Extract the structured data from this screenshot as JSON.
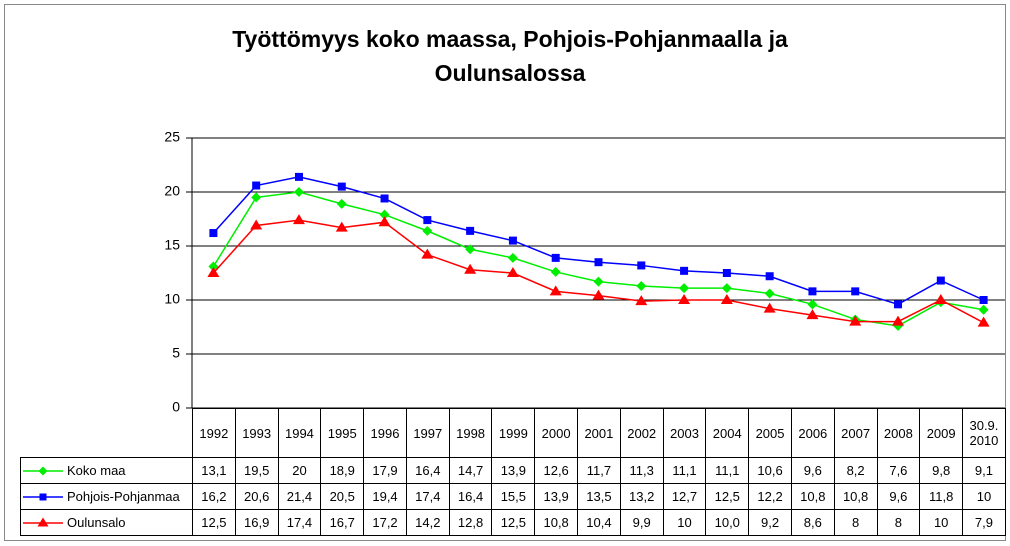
{
  "chart_data": {
    "type": "line",
    "title": "Työttömyys koko maassa, Pohjois-Pohjanmaalla ja Oulunsalossa",
    "categories": [
      "1992",
      "1993",
      "1994",
      "1995",
      "1996",
      "1997",
      "1998",
      "1999",
      "2000",
      "2001",
      "2002",
      "2003",
      "2004",
      "2005",
      "2006",
      "2007",
      "2008",
      "2009",
      "30.9. 2010"
    ],
    "series": [
      {
        "name": "Koko maa",
        "color": "#00ee00",
        "marker": "diamond",
        "values": [
          13.1,
          19.5,
          20,
          18.9,
          17.9,
          16.4,
          14.7,
          13.9,
          12.6,
          11.7,
          11.3,
          11.1,
          11.1,
          10.6,
          9.6,
          8.2,
          7.6,
          9.8,
          9.1
        ],
        "value_labels": [
          "13,1",
          "19,5",
          "20",
          "18,9",
          "17,9",
          "16,4",
          "14,7",
          "13,9",
          "12,6",
          "11,7",
          "11,3",
          "11,1",
          "11,1",
          "10,6",
          "9,6",
          "8,2",
          "7,6",
          "9,8",
          "9,1"
        ]
      },
      {
        "name": "Pohjois-Pohjanmaa",
        "color": "#0000ff",
        "marker": "square",
        "values": [
          16.2,
          20.6,
          21.4,
          20.5,
          19.4,
          17.4,
          16.4,
          15.5,
          13.9,
          13.5,
          13.2,
          12.7,
          12.5,
          12.2,
          10.8,
          10.8,
          9.6,
          11.8,
          10
        ],
        "value_labels": [
          "16,2",
          "20,6",
          "21,4",
          "20,5",
          "19,4",
          "17,4",
          "16,4",
          "15,5",
          "13,9",
          "13,5",
          "13,2",
          "12,7",
          "12,5",
          "12,2",
          "10,8",
          "10,8",
          "9,6",
          "11,8",
          "10"
        ]
      },
      {
        "name": "Oulunsalo",
        "color": "#ff0000",
        "marker": "triangle",
        "values": [
          12.5,
          16.9,
          17.4,
          16.7,
          17.2,
          14.2,
          12.8,
          12.5,
          10.8,
          10.4,
          9.9,
          10,
          10,
          9.2,
          8.6,
          8,
          8,
          10,
          7.9
        ],
        "value_labels": [
          "12,5",
          "16,9",
          "17,4",
          "16,7",
          "17,2",
          "14,2",
          "12,8",
          "12,5",
          "10,8",
          "10,4",
          "9,9",
          "10",
          "10,0",
          "9,2",
          "8,6",
          "8",
          "8",
          "10",
          "7,9"
        ]
      }
    ],
    "ylim": [
      0,
      25
    ],
    "yticks": [
      0,
      5,
      10,
      15,
      20,
      25
    ],
    "grid": true
  }
}
